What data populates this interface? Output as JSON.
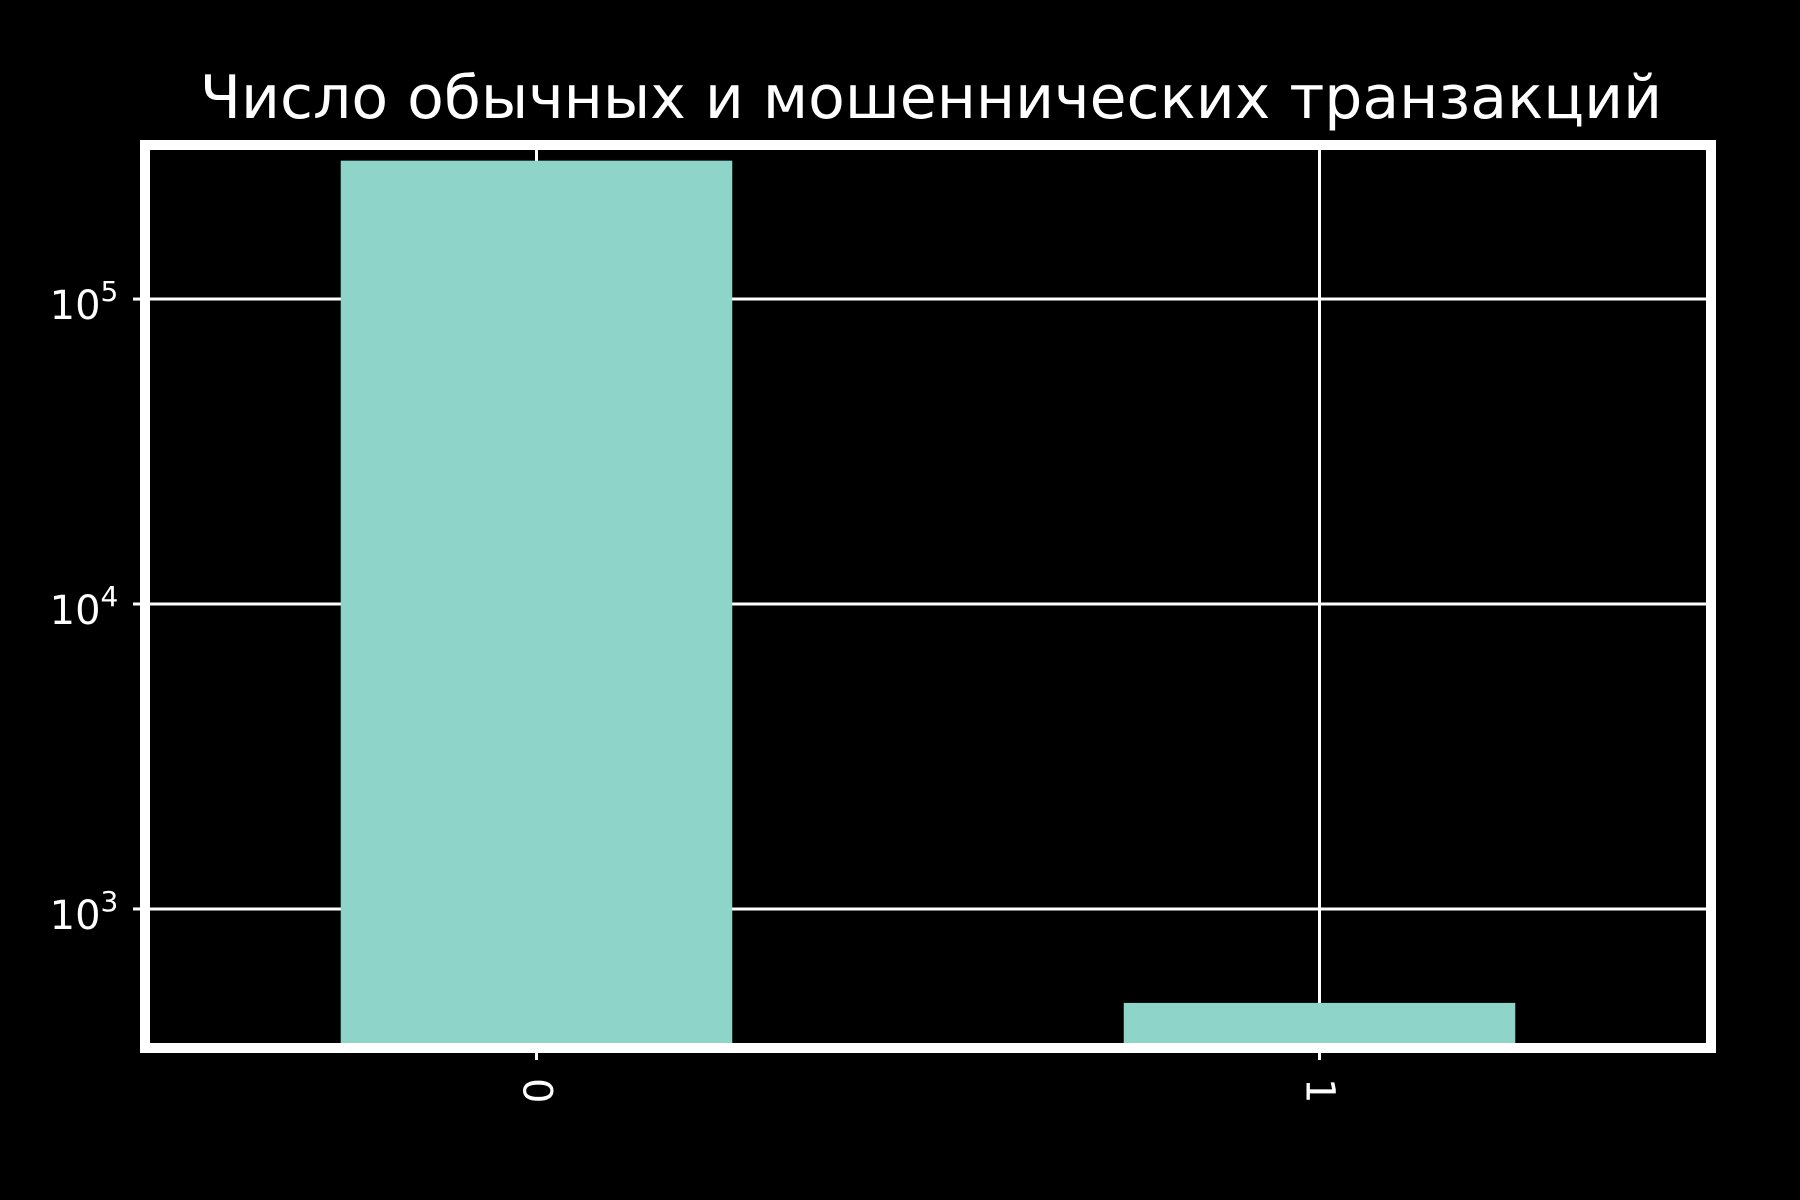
{
  "chart_data": {
    "type": "bar",
    "title": "Число обычных и мошеннических транзакций",
    "xlabel": "",
    "ylabel": "",
    "yscale": "log",
    "ylim": [
      350,
      320000
    ],
    "categories": [
      "0",
      "1"
    ],
    "values": [
      284315,
      492
    ],
    "yticks": [
      {
        "value": 1000,
        "base": "10",
        "exp": "3"
      },
      {
        "value": 10000,
        "base": "10",
        "exp": "4"
      },
      {
        "value": 100000,
        "base": "10",
        "exp": "5"
      }
    ],
    "grid": true,
    "legend": "none"
  },
  "colors": {
    "background": "#000000",
    "bar": "#8fd4c9",
    "axes": "#ffffff",
    "grid": "#ffffff",
    "text": "#ffffff"
  }
}
